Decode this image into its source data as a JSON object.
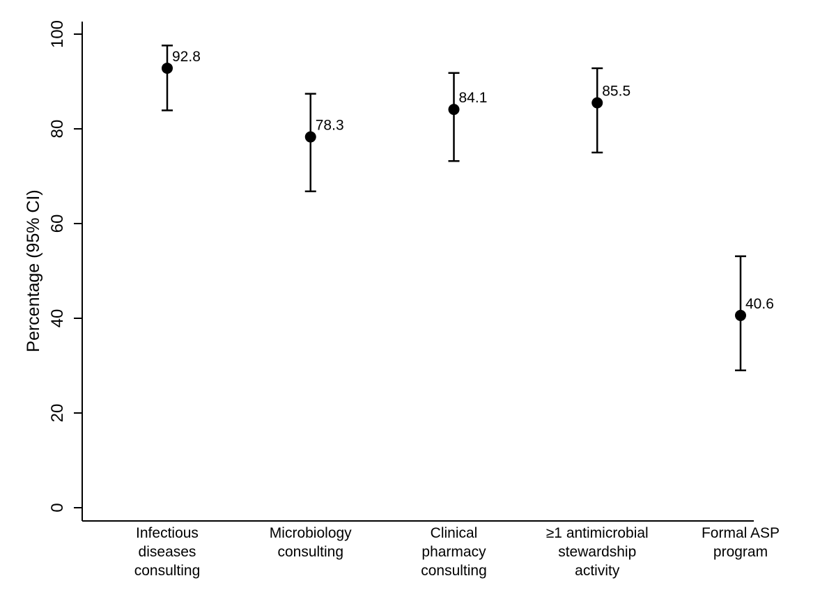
{
  "chart_data": {
    "type": "scatter",
    "title": "",
    "xlabel": "",
    "ylabel": "Percentage (95% CI)",
    "ylim": [
      0,
      100
    ],
    "yticks": [
      0,
      20,
      40,
      60,
      80,
      100
    ],
    "grid": false,
    "categories": [
      [
        "Infectious",
        "diseases",
        "consulting"
      ],
      [
        "Microbiology",
        "consulting"
      ],
      [
        "Clinical",
        "pharmacy",
        "consulting"
      ],
      [
        "≥1 antimicrobial",
        "stewardship",
        "activity"
      ],
      [
        "Formal ASP",
        "program"
      ]
    ],
    "series": [
      {
        "name": "Percentage",
        "values": [
          92.8,
          78.3,
          84.1,
          85.5,
          40.6
        ],
        "labels": [
          "92.8",
          "78.3",
          "84.1",
          "85.5",
          "40.6"
        ],
        "ci_lower": [
          83.9,
          66.8,
          73.2,
          75.0,
          29.0
        ],
        "ci_upper": [
          97.6,
          87.4,
          91.8,
          92.8,
          53.1
        ]
      }
    ]
  }
}
